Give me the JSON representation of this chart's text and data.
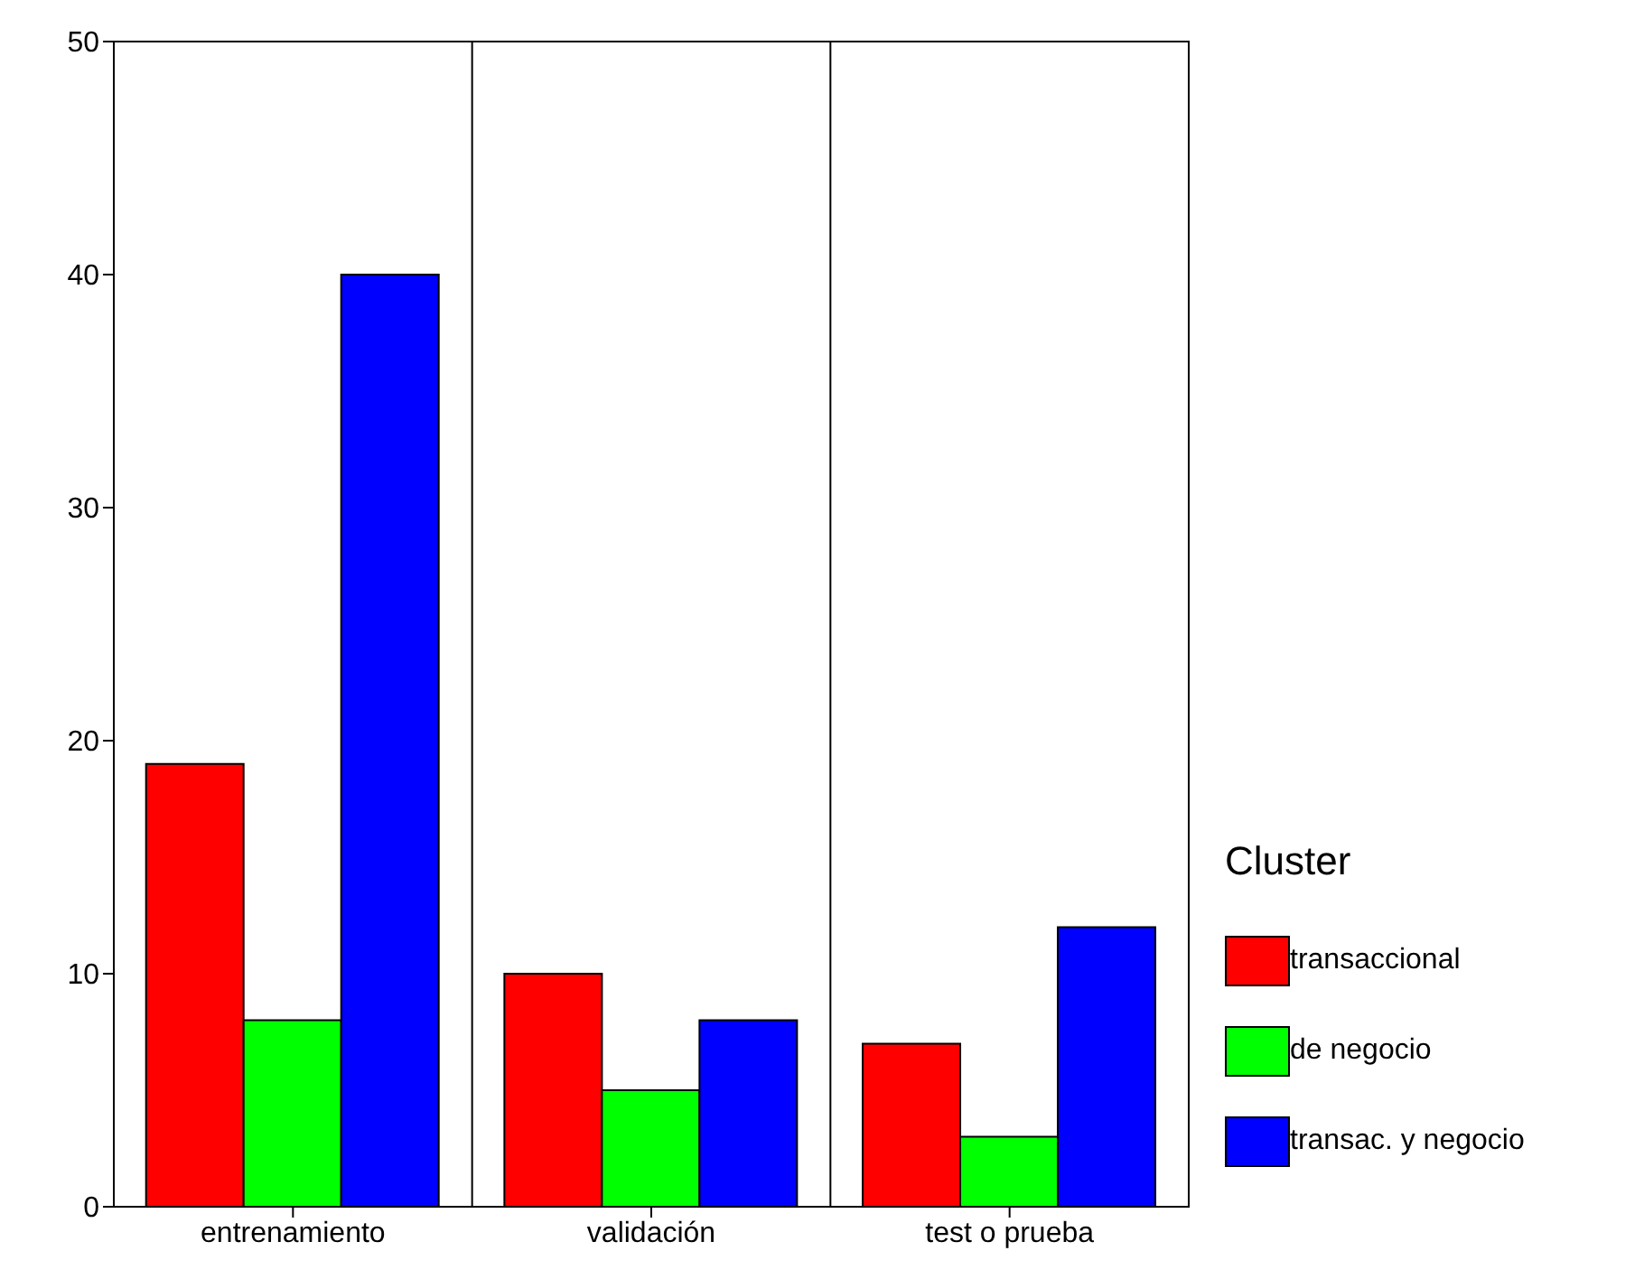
{
  "chart_data": {
    "type": "bar",
    "categories": [
      "entrenamiento",
      "validación",
      "test o prueba"
    ],
    "series": [
      {
        "name": "transaccional",
        "color": "#ff0000",
        "values": [
          19,
          10,
          7
        ]
      },
      {
        "name": "de negocio",
        "color": "#00ff00",
        "values": [
          8,
          5,
          3
        ]
      },
      {
        "name": "transac. y negocio",
        "color": "#0000ff",
        "values": [
          40,
          8,
          12
        ]
      }
    ],
    "ylim": [
      0,
      50
    ],
    "yticks": [
      0,
      10,
      20,
      30,
      40,
      50
    ],
    "legend": "right",
    "legend_title": "Cluster"
  }
}
